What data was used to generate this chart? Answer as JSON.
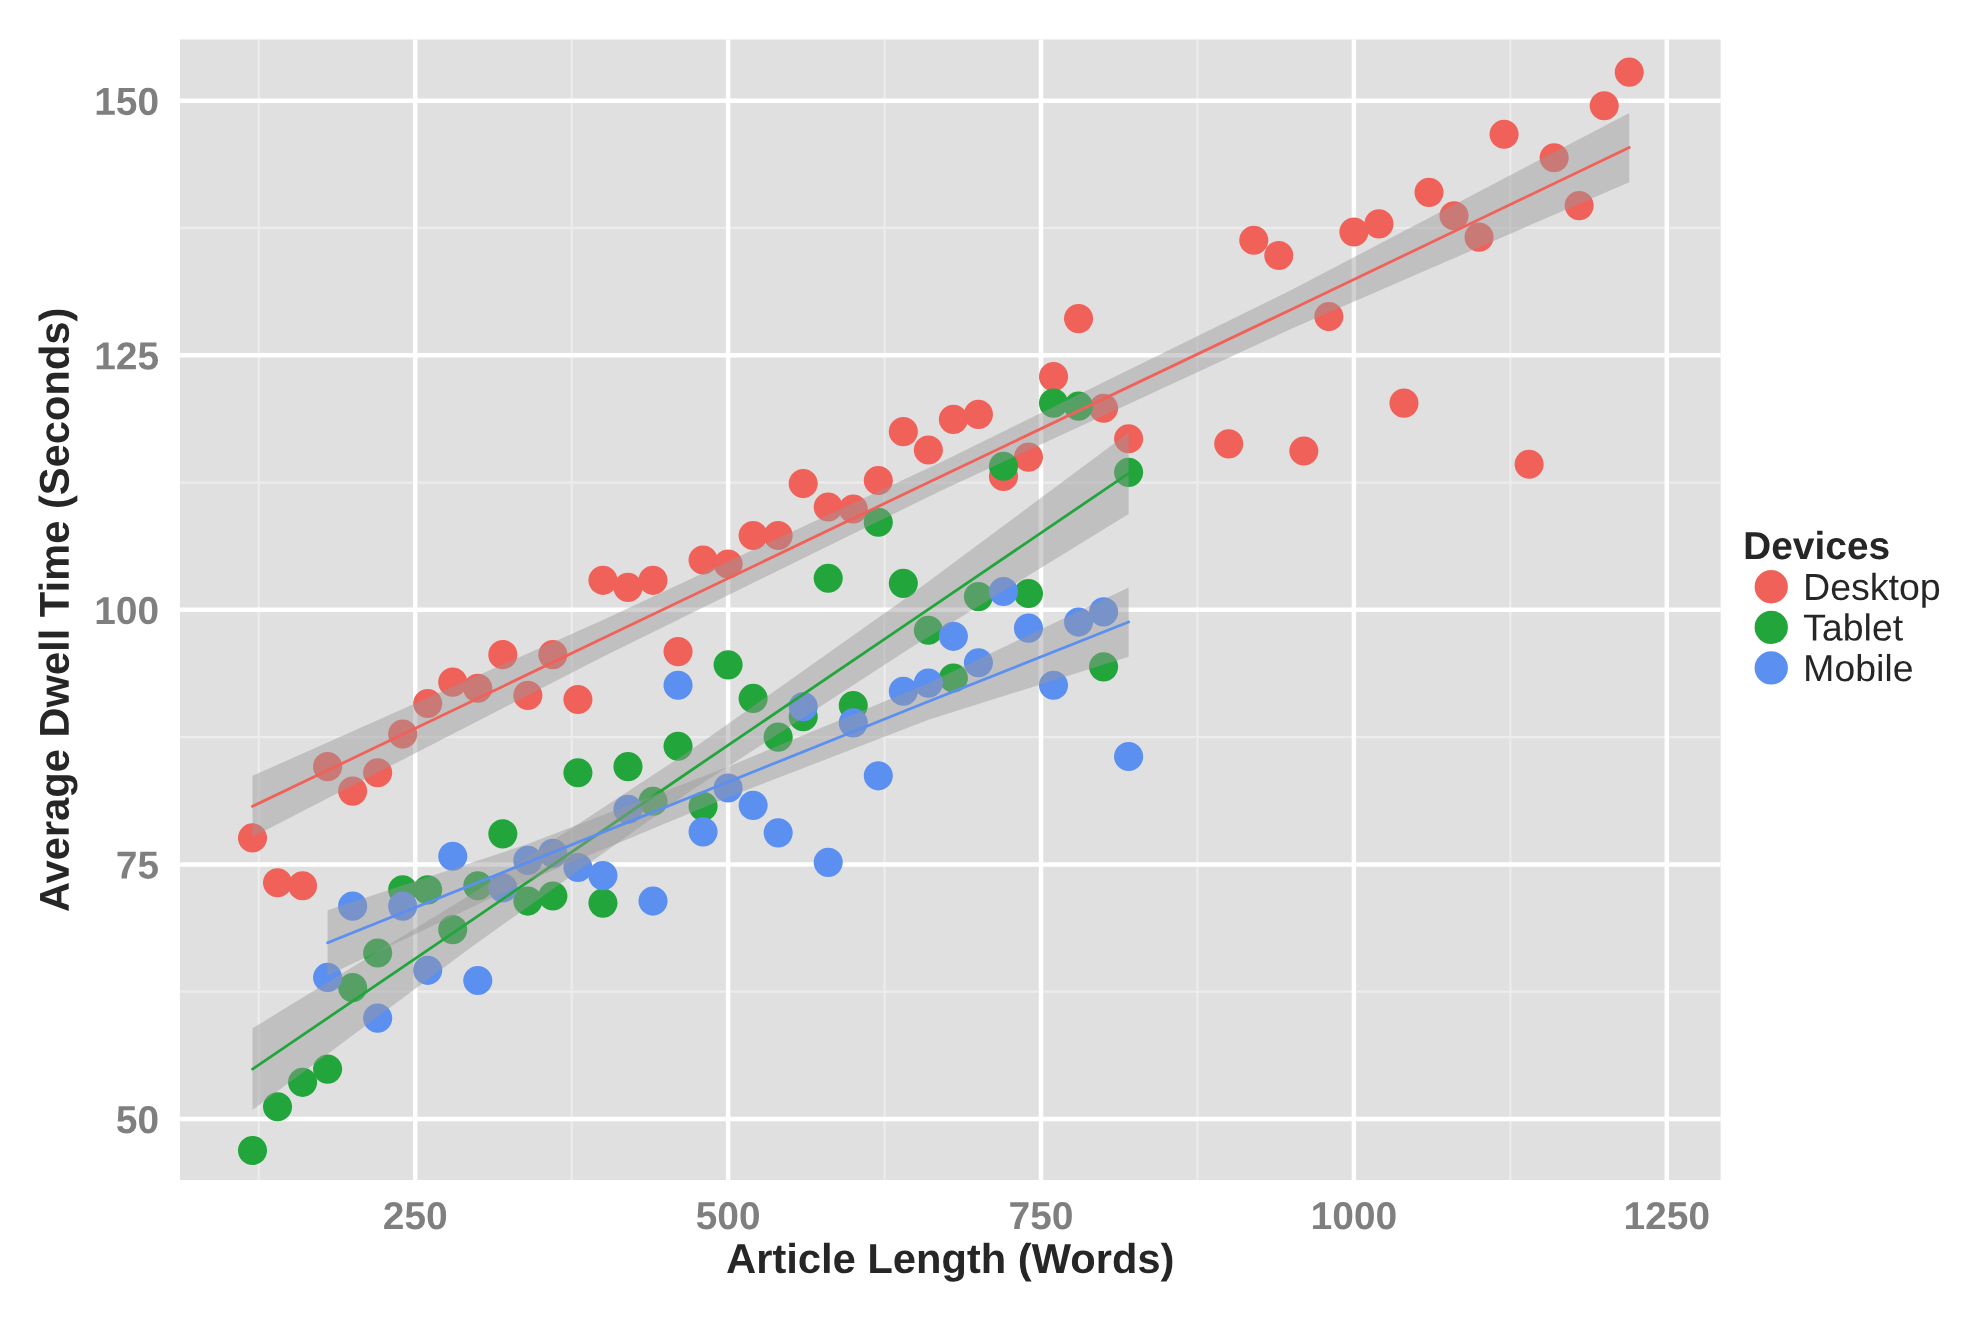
{
  "chart_data": {
    "type": "scatter",
    "xlabel": "Article Length (Words)",
    "ylabel": "Average Dwell Time (Seconds)",
    "legend_title": "Devices",
    "legend": "right",
    "grid": true,
    "xlim": [
      62,
      1293
    ],
    "ylim": [
      44,
      156
    ],
    "xticks": [
      250,
      500,
      750,
      1000,
      1250
    ],
    "yticks": [
      50,
      75,
      100,
      125,
      150
    ],
    "series": [
      {
        "name": "Desktop",
        "marker": "circle",
        "color": "#f0615a",
        "x": [
          120,
          140,
          160,
          180,
          200,
          220,
          240,
          260,
          280,
          300,
          320,
          340,
          360,
          380,
          400,
          420,
          440,
          460,
          480,
          500,
          520,
          540,
          560,
          580,
          600,
          620,
          640,
          660,
          680,
          700,
          720,
          740,
          760,
          780,
          800,
          820,
          900,
          920,
          940,
          960,
          980,
          1000,
          1020,
          1040,
          1060,
          1080,
          1100,
          1120,
          1140,
          1160,
          1180,
          1200,
          1220
        ],
        "values": [
          77.6,
          73.2,
          72.9,
          84.6,
          82.2,
          84.0,
          87.8,
          90.8,
          92.9,
          92.3,
          95.6,
          91.6,
          95.6,
          91.2,
          102.9,
          102.2,
          102.9,
          95.9,
          104.9,
          104.5,
          107.3,
          107.3,
          112.4,
          110.1,
          109.9,
          112.7,
          117.5,
          115.7,
          118.7,
          119.2,
          113.1,
          115.0,
          122.9,
          128.6,
          119.8,
          116.8,
          116.3,
          136.3,
          134.8,
          115.6,
          128.8,
          137.1,
          137.9,
          120.3,
          141.0,
          138.7,
          136.6,
          146.7,
          114.3,
          144.4,
          139.7,
          149.5,
          152.8
        ]
      },
      {
        "name": "Tablet",
        "marker": "circle",
        "color": "#22a63b",
        "x": [
          120,
          140,
          160,
          180,
          200,
          220,
          240,
          260,
          280,
          300,
          320,
          340,
          360,
          380,
          400,
          420,
          440,
          460,
          480,
          500,
          520,
          540,
          560,
          580,
          600,
          620,
          640,
          660,
          680,
          700,
          720,
          740,
          760,
          780,
          800,
          820
        ],
        "values": [
          46.9,
          51.2,
          53.6,
          54.9,
          62.9,
          66.3,
          72.5,
          72.5,
          68.6,
          72.9,
          78.0,
          71.4,
          71.9,
          84.0,
          71.2,
          84.6,
          81.2,
          86.6,
          80.7,
          94.6,
          91.3,
          87.5,
          89.5,
          103.1,
          90.6,
          108.6,
          102.6,
          98.0,
          93.3,
          101.3,
          114.1,
          101.6,
          120.3,
          120.0,
          94.4,
          113.5
        ]
      },
      {
        "name": "Mobile",
        "marker": "circle",
        "color": "#5b8ff0",
        "x": [
          180,
          200,
          220,
          240,
          260,
          280,
          300,
          320,
          340,
          360,
          380,
          400,
          420,
          440,
          460,
          480,
          500,
          520,
          540,
          560,
          580,
          600,
          620,
          640,
          660,
          680,
          700,
          720,
          740,
          760,
          780,
          800,
          820
        ],
        "values": [
          63.9,
          70.9,
          59.9,
          70.9,
          64.6,
          75.8,
          63.6,
          72.7,
          75.4,
          76.1,
          74.7,
          73.9,
          80.4,
          71.4,
          92.6,
          78.2,
          82.5,
          80.8,
          78.1,
          90.5,
          75.2,
          88.9,
          83.7,
          92.0,
          92.8,
          97.4,
          94.8,
          101.8,
          98.2,
          92.6,
          98.8,
          99.8,
          85.6
        ]
      },
      {
        "type": "line",
        "marker": "none",
        "color": "#f0615a",
        "x": [
          120,
          400,
          670,
          950,
          1220
        ],
        "values": [
          80.7,
          97.2,
          113.1,
          129.5,
          145.4
        ],
        "lower": [
          77.7,
          95.4,
          111.7,
          127.6,
          142.0
        ],
        "upper": [
          83.7,
          99.0,
          114.5,
          131.4,
          148.8
        ]
      },
      {
        "type": "line",
        "marker": "none",
        "color": "#22a63b",
        "x": [
          120,
          295,
          470,
          645,
          820
        ],
        "values": [
          54.9,
          69.5,
          84.2,
          98.8,
          113.4
        ],
        "lower": [
          50.9,
          66.9,
          82.2,
          96.2,
          109.4
        ],
        "upper": [
          58.9,
          72.1,
          86.2,
          101.4,
          117.4
        ]
      },
      {
        "type": "line",
        "marker": "none",
        "color": "#5b8ff0",
        "x": [
          180,
          340,
          500,
          660,
          820
        ],
        "values": [
          67.3,
          75.2,
          83.1,
          91.0,
          98.8
        ],
        "lower": [
          64.1,
          73.4,
          81.6,
          89.2,
          95.4
        ],
        "upper": [
          70.5,
          77.0,
          84.6,
          92.8,
          102.2
        ]
      }
    ]
  }
}
